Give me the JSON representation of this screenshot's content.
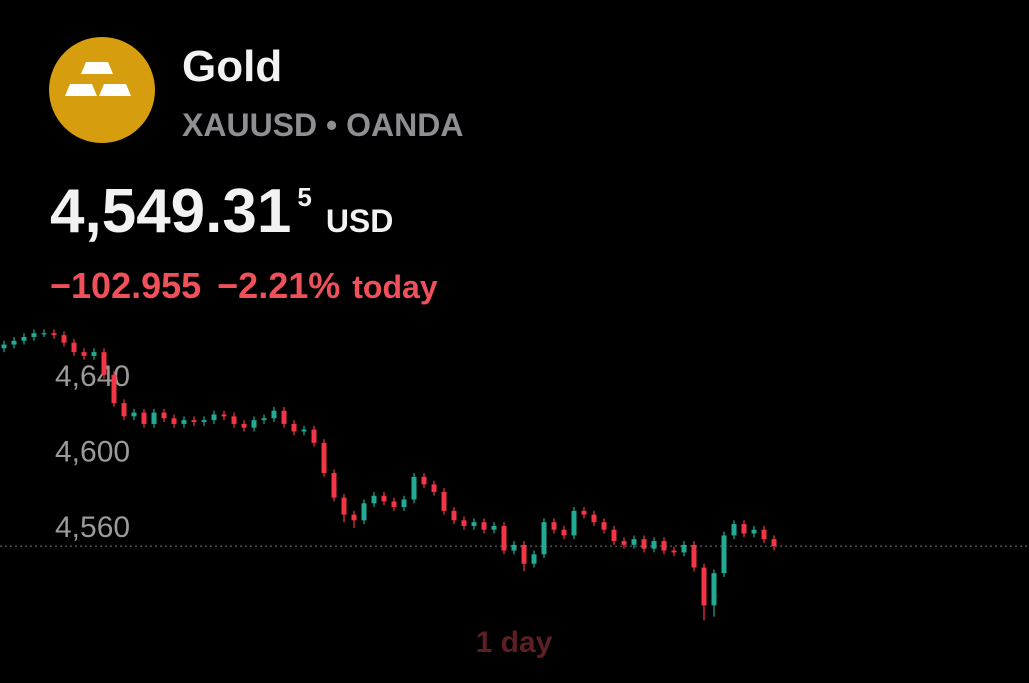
{
  "header": {
    "name": "Gold",
    "symbol_line": "XAUUSD • OANDA",
    "price": "4,549.31",
    "price_last_digit": "5",
    "currency": "USD",
    "change": "−102.955",
    "change_percent": "−2.21%",
    "period": "today"
  },
  "chart_data": {
    "type": "candlestick",
    "timeframe": "1 day",
    "up_color": "#22ab94",
    "down_color": "#f23645",
    "ylim": [
      4506,
      4669
    ],
    "yticks": [
      {
        "value": 4640,
        "label": "4,640"
      },
      {
        "value": 4600,
        "label": "4,600"
      },
      {
        "value": 4560,
        "label": "4,560"
      }
    ],
    "candles": {
      "open": [
        4654,
        4656,
        4658,
        4660,
        4662,
        4662,
        4661,
        4657,
        4652,
        4650,
        4652,
        4640,
        4625,
        4618,
        4620,
        4614,
        4620,
        4617,
        4614,
        4616,
        4615,
        4616,
        4619,
        4618,
        4614,
        4612,
        4616,
        4617,
        4621,
        4614,
        4610,
        4611,
        4604,
        4588,
        4575,
        4566,
        4563,
        4572,
        4576,
        4573,
        4570,
        4574,
        4586,
        4582,
        4578,
        4568,
        4563,
        4560,
        4562,
        4558,
        4560,
        4547,
        4550,
        4540,
        4545,
        4562,
        4558,
        4555,
        4568,
        4566,
        4562,
        4558,
        4552,
        4550,
        4553,
        4548,
        4552,
        4547,
        4546,
        4550,
        4538,
        4518,
        4535,
        4555,
        4561,
        4556,
        4558,
        4553
      ],
      "high": [
        4658,
        4660,
        4662,
        4664,
        4664,
        4664,
        4663,
        4659,
        4654,
        4654,
        4654,
        4642,
        4627,
        4622,
        4622,
        4622,
        4622,
        4619,
        4618,
        4618,
        4618,
        4621,
        4621,
        4620,
        4616,
        4618,
        4619,
        4623,
        4623,
        4616,
        4613,
        4613,
        4606,
        4590,
        4577,
        4568,
        4574,
        4578,
        4578,
        4575,
        4576,
        4588,
        4588,
        4584,
        4580,
        4570,
        4565,
        4564,
        4564,
        4562,
        4562,
        4552,
        4552,
        4547,
        4564,
        4564,
        4560,
        4570,
        4570,
        4568,
        4564,
        4560,
        4554,
        4555,
        4555,
        4554,
        4554,
        4549,
        4552,
        4552,
        4540,
        4537,
        4557,
        4563,
        4563,
        4560,
        4560,
        4555
      ],
      "low": [
        4652,
        4654,
        4656,
        4658,
        4660,
        4659,
        4655,
        4650,
        4648,
        4648,
        4638,
        4623,
        4616,
        4616,
        4612,
        4612,
        4615,
        4612,
        4612,
        4613,
        4613,
        4614,
        4616,
        4612,
        4610,
        4610,
        4614,
        4615,
        4612,
        4608,
        4608,
        4602,
        4586,
        4573,
        4562,
        4559,
        4561,
        4570,
        4571,
        4568,
        4568,
        4572,
        4580,
        4576,
        4566,
        4561,
        4558,
        4558,
        4556,
        4556,
        4545,
        4545,
        4536,
        4538,
        4543,
        4556,
        4553,
        4553,
        4564,
        4560,
        4556,
        4550,
        4548,
        4548,
        4546,
        4546,
        4545,
        4544,
        4544,
        4536,
        4510,
        4512,
        4533,
        4553,
        4554,
        4554,
        4551,
        4547
      ],
      "close": [
        4656,
        4658,
        4660,
        4662,
        4662,
        4661,
        4657,
        4652,
        4650,
        4652,
        4640,
        4625,
        4618,
        4620,
        4614,
        4620,
        4617,
        4614,
        4616,
        4615,
        4616,
        4619,
        4618,
        4614,
        4612,
        4616,
        4617,
        4621,
        4614,
        4610,
        4611,
        4604,
        4588,
        4575,
        4566,
        4563,
        4572,
        4576,
        4573,
        4570,
        4574,
        4586,
        4582,
        4578,
        4568,
        4563,
        4560,
        4562,
        4558,
        4560,
        4547,
        4550,
        4540,
        4545,
        4562,
        4558,
        4555,
        4568,
        4566,
        4562,
        4558,
        4552,
        4550,
        4553,
        4548,
        4552,
        4547,
        4546,
        4550,
        4538,
        4518,
        4535,
        4555,
        4561,
        4556,
        4558,
        4553,
        4549.3
      ]
    }
  }
}
